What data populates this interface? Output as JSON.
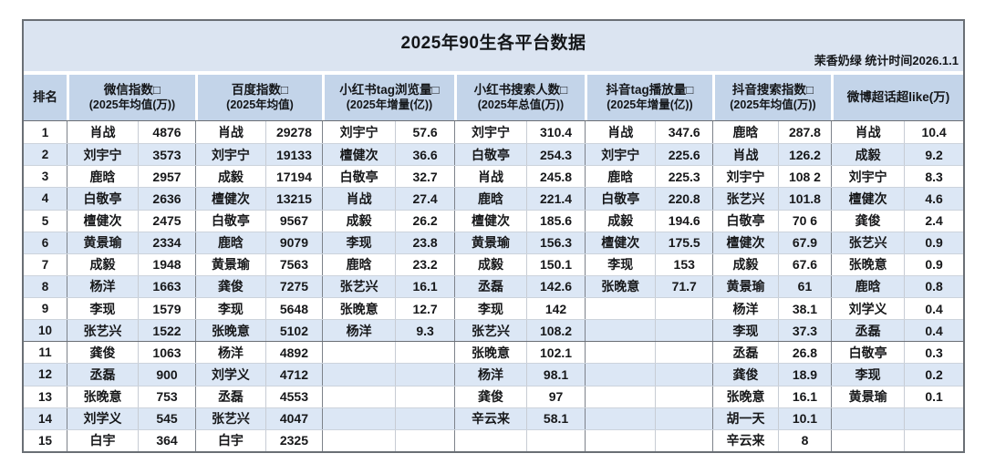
{
  "header": {
    "title": "2025年90生各平台数据",
    "subtitle": "茉香奶绿 统计时间2026.1.1"
  },
  "colors": {
    "band-bg": "#dbe4f1",
    "header-bg": "#c3d4e9",
    "stripe-bg": "#dce7f5",
    "border-dark": "#6a6f75",
    "border-light": "#c7ccd4"
  },
  "chart_data": {
    "type": "table",
    "title": "2025年90生各平台数据",
    "source_note": "茉香奶绿 统计时间2026.1.1",
    "layout_hints": {
      "striped_rows": true,
      "heavy_divider_after_row": 10,
      "header_two_lines": true
    },
    "column_groups": [
      {
        "id": "rank",
        "line1": "排名",
        "line2": ""
      },
      {
        "id": "wechat-index",
        "line1": "微信指数□",
        "line2": "(2025年均值(万))"
      },
      {
        "id": "baidu-index",
        "line1": "百度指数□",
        "line2": "(2025年均值)"
      },
      {
        "id": "xiaohongshu-tag-views",
        "line1": "小红书tag浏览量□",
        "line2": "(2025年增量(亿))"
      },
      {
        "id": "xiaohongshu-search-users",
        "line1": "小红书搜索人数□",
        "line2": "(2025年总值(万))"
      },
      {
        "id": "douyin-tag-plays",
        "line1": "抖音tag播放量□",
        "line2": "(2025年增量(亿))"
      },
      {
        "id": "douyin-search-index",
        "line1": "抖音搜索指数□",
        "line2": "(2025年均值(万))"
      },
      {
        "id": "weibo-supertopic-chaolike",
        "line1": "微博超话超like(万)",
        "line2": ""
      }
    ],
    "rows": [
      [
        "1",
        "肖战",
        "4876",
        "肖战",
        "29278",
        "刘宇宁",
        "57.6",
        "刘宇宁",
        "310.4",
        "肖战",
        "347.6",
        "鹿晗",
        "287.8",
        "肖战",
        "10.4"
      ],
      [
        "2",
        "刘宇宁",
        "3573",
        "刘宇宁",
        "19133",
        "檀健次",
        "36.6",
        "白敬亭",
        "254.3",
        "刘宇宁",
        "225.6",
        "肖战",
        "126.2",
        "成毅",
        "9.2"
      ],
      [
        "3",
        "鹿晗",
        "2957",
        "成毅",
        "17194",
        "白敬亭",
        "32.7",
        "肖战",
        "245.8",
        "鹿晗",
        "225.3",
        "刘宇宁",
        "108 2",
        "刘宇宁",
        "8.3"
      ],
      [
        "4",
        "白敬亭",
        "2636",
        "檀健次",
        "13215",
        "肖战",
        "27.4",
        "鹿晗",
        "221.4",
        "白敬亭",
        "220.8",
        "张艺兴",
        "101.8",
        "檀健次",
        "4.6"
      ],
      [
        "5",
        "檀健次",
        "2475",
        "白敬亭",
        "9567",
        "成毅",
        "26.2",
        "檀健次",
        "185.6",
        "成毅",
        "194.6",
        "白敬亭",
        "70 6",
        "龚俊",
        "2.4"
      ],
      [
        "6",
        "黄景瑜",
        "2334",
        "鹿晗",
        "9079",
        "李现",
        "23.8",
        "黄景瑜",
        "156.3",
        "檀健次",
        "175.5",
        "檀健次",
        "67.9",
        "张艺兴",
        "0.9"
      ],
      [
        "7",
        "成毅",
        "1948",
        "黄景瑜",
        "7563",
        "鹿晗",
        "23.2",
        "成毅",
        "150.1",
        "李现",
        "153",
        "成毅",
        "67.6",
        "张晚意",
        "0.9"
      ],
      [
        "8",
        "杨洋",
        "1663",
        "龚俊",
        "7275",
        "张艺兴",
        "16.1",
        "丞磊",
        "142.6",
        "张晚意",
        "71.7",
        "黄景瑜",
        "61",
        "鹿晗",
        "0.8"
      ],
      [
        "9",
        "李现",
        "1579",
        "李现",
        "5648",
        "张晚意",
        "12.7",
        "李现",
        "142",
        "",
        "",
        "杨洋",
        "38.1",
        "刘学义",
        "0.4"
      ],
      [
        "10",
        "张艺兴",
        "1522",
        "张晚意",
        "5102",
        "杨洋",
        "9.3",
        "张艺兴",
        "108.2",
        "",
        "",
        "李现",
        "37.3",
        "丞磊",
        "0.4"
      ],
      [
        "11",
        "龚俊",
        "1063",
        "杨洋",
        "4892",
        "",
        "",
        "张晚意",
        "102.1",
        "",
        "",
        "丞磊",
        "26.8",
        "白敬亭",
        "0.3"
      ],
      [
        "12",
        "丞磊",
        "900",
        "刘学义",
        "4712",
        "",
        "",
        "杨洋",
        "98.1",
        "",
        "",
        "龚俊",
        "18.9",
        "李现",
        "0.2"
      ],
      [
        "13",
        "张晚意",
        "753",
        "丞磊",
        "4553",
        "",
        "",
        "龚俊",
        "97",
        "",
        "",
        "张晚意",
        "16.1",
        "黄景瑜",
        "0.1"
      ],
      [
        "14",
        "刘学义",
        "545",
        "张艺兴",
        "4047",
        "",
        "",
        "辛云来",
        "58.1",
        "",
        "",
        "胡一天",
        "10.1",
        "",
        ""
      ],
      [
        "15",
        "白宇",
        "364",
        "白宇",
        "2325",
        "",
        "",
        "",
        "",
        "",
        "",
        "辛云来",
        "8",
        "",
        ""
      ]
    ]
  }
}
